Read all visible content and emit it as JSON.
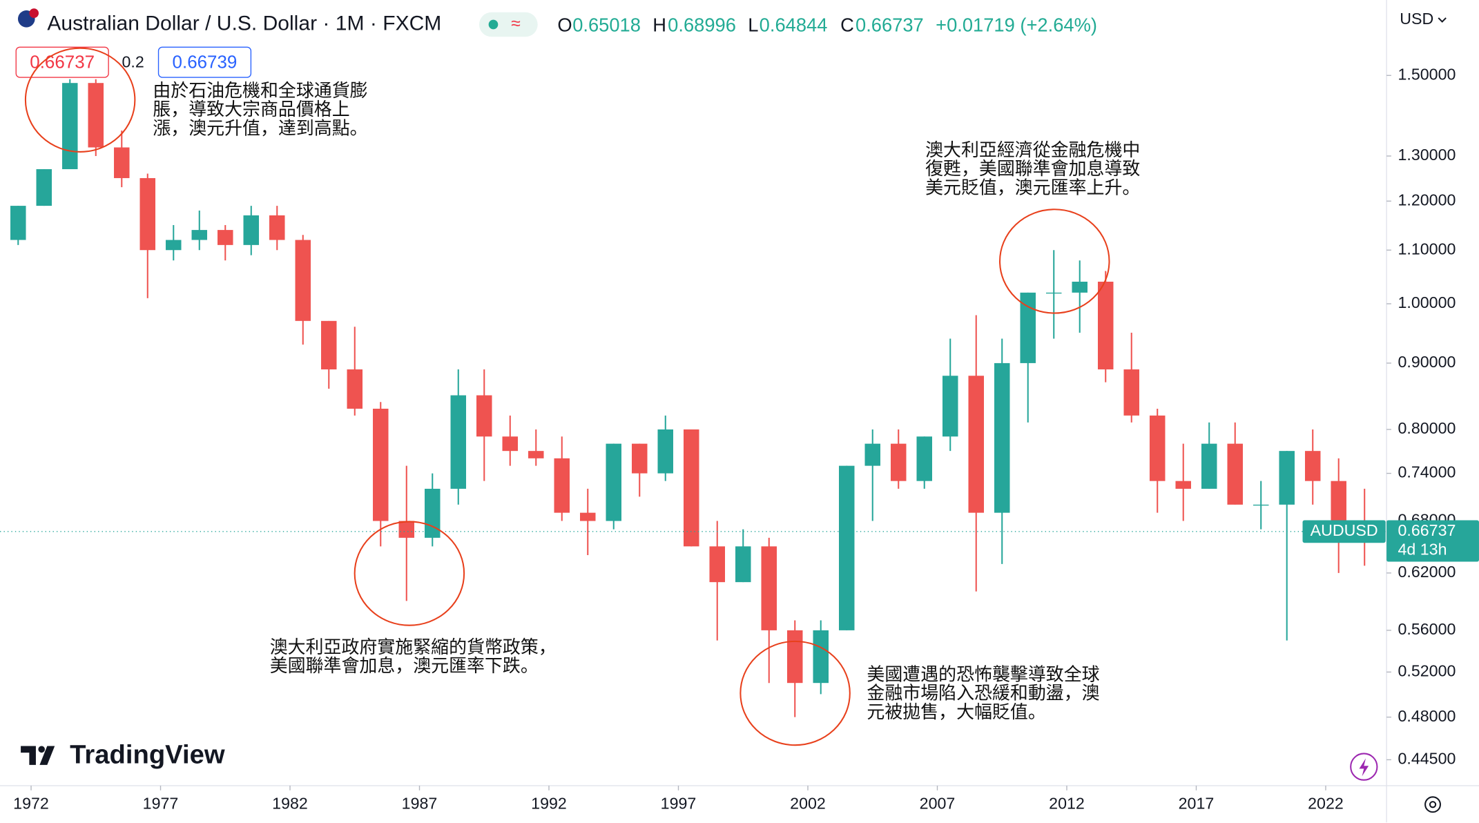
{
  "header": {
    "title": "Australian Dollar / U.S. Dollar · 1M · FXCM",
    "o_label": "O",
    "h_label": "H",
    "l_label": "L",
    "c_label": "C",
    "change": "+0.01719 (+2.64%)",
    "bid": 0.66737,
    "spread": 0.2,
    "ask": 0.66739
  },
  "chart_data": {
    "type": "candlestick",
    "log_scale": true,
    "grid": false,
    "up_color": "#26a69a",
    "down_color": "#ef5350",
    "x": [
      1971,
      1972,
      1973,
      1974,
      1975,
      1976,
      1977,
      1978,
      1979,
      1980,
      1981,
      1982,
      1983,
      1984,
      1985,
      1986,
      1987,
      1988,
      1989,
      1990,
      1991,
      1992,
      1993,
      1994,
      1995,
      1996,
      1997,
      1998,
      1999,
      2000,
      2001,
      2002,
      2003,
      2004,
      2005,
      2006,
      2007,
      2008,
      2009,
      2010,
      2011,
      2012,
      2013,
      2014,
      2015,
      2016,
      2017,
      2018,
      2019,
      2020,
      2021,
      2022,
      2023
    ],
    "open": [
      1.12,
      1.19,
      1.27,
      1.48,
      1.32,
      1.25,
      1.1,
      1.12,
      1.14,
      1.11,
      1.17,
      1.12,
      0.97,
      0.89,
      0.83,
      0.68,
      0.66,
      0.72,
      0.85,
      0.79,
      0.77,
      0.76,
      0.69,
      0.68,
      0.78,
      0.74,
      0.8,
      0.65,
      0.61,
      0.65,
      0.56,
      0.51,
      0.56,
      0.75,
      0.78,
      0.73,
      0.79,
      0.88,
      0.69,
      0.9,
      1.02,
      1.02,
      1.04,
      0.89,
      0.82,
      0.73,
      0.72,
      0.78,
      0.7,
      0.7,
      0.77,
      0.73,
      0.68
    ],
    "high": [
      1.19,
      1.27,
      1.49,
      1.49,
      1.36,
      1.26,
      1.15,
      1.18,
      1.15,
      1.19,
      1.19,
      1.13,
      0.97,
      0.96,
      0.84,
      0.75,
      0.74,
      0.89,
      0.89,
      0.82,
      0.8,
      0.79,
      0.72,
      0.78,
      0.78,
      0.82,
      0.8,
      0.68,
      0.67,
      0.66,
      0.57,
      0.57,
      0.75,
      0.8,
      0.8,
      0.79,
      0.94,
      0.98,
      0.94,
      1.02,
      1.1,
      1.08,
      1.06,
      0.95,
      0.83,
      0.78,
      0.81,
      0.81,
      0.73,
      0.77,
      0.8,
      0.76,
      0.72
    ],
    "low": [
      1.11,
      1.19,
      1.27,
      1.3,
      1.23,
      1.01,
      1.08,
      1.1,
      1.08,
      1.09,
      1.1,
      0.93,
      0.86,
      0.82,
      0.65,
      0.59,
      0.65,
      0.7,
      0.73,
      0.75,
      0.75,
      0.68,
      0.64,
      0.67,
      0.71,
      0.73,
      0.65,
      0.55,
      0.61,
      0.51,
      0.48,
      0.5,
      0.56,
      0.68,
      0.72,
      0.72,
      0.77,
      0.6,
      0.63,
      0.81,
      0.94,
      0.95,
      0.87,
      0.81,
      0.69,
      0.68,
      0.72,
      0.7,
      0.67,
      0.55,
      0.7,
      0.62,
      0.628
    ],
    "close": [
      1.19,
      1.27,
      1.48,
      1.32,
      1.25,
      1.1,
      1.12,
      1.14,
      1.11,
      1.17,
      1.12,
      0.97,
      0.89,
      0.83,
      0.68,
      0.66,
      0.72,
      0.85,
      0.79,
      0.77,
      0.76,
      0.69,
      0.68,
      0.78,
      0.74,
      0.8,
      0.65,
      0.61,
      0.65,
      0.56,
      0.51,
      0.56,
      0.75,
      0.78,
      0.73,
      0.79,
      0.88,
      0.69,
      0.9,
      1.02,
      1.02,
      1.04,
      0.89,
      0.82,
      0.73,
      0.72,
      0.78,
      0.7,
      0.7,
      0.77,
      0.73,
      0.68,
      0.667
    ],
    "ohlc": {
      "open": 0.65018,
      "high": 0.68996,
      "low": 0.64844,
      "close": 0.66737
    },
    "symbol": "AUDUSD",
    "countdown": "4d 13h",
    "currency": "USD",
    "xlim": [
      1970.8,
      2024.35
    ],
    "xticks": [
      1972,
      1977,
      1982,
      1987,
      1992,
      1997,
      2002,
      2007,
      2012,
      2017,
      2022
    ],
    "ylim": [
      0.425,
      1.715
    ],
    "yticks": [
      {
        "value": 1.5,
        "label": "1.50000"
      },
      {
        "value": 1.3,
        "label": "1.30000"
      },
      {
        "value": 1.2,
        "label": "1.20000"
      },
      {
        "value": 1.1,
        "label": "1.10000"
      },
      {
        "value": 1.0,
        "label": "1.00000"
      },
      {
        "value": 0.9,
        "label": "0.90000"
      },
      {
        "value": 0.8,
        "label": "0.80000"
      },
      {
        "value": 0.74,
        "label": "0.74000"
      },
      {
        "value": 0.68,
        "label": "0.68000"
      },
      {
        "value": 0.62,
        "label": "0.62000"
      },
      {
        "value": 0.56,
        "label": "0.56000"
      },
      {
        "value": 0.52,
        "label": "0.52000"
      },
      {
        "value": 0.48,
        "label": "0.48000"
      },
      {
        "value": 0.445,
        "label": "0.44500"
      }
    ],
    "annotations": [
      {
        "lines": [
          "由於石油危機和全球通貨膨",
          "脹，導致大宗商品價格上",
          "漲，澳元升值，達到高點。"
        ]
      },
      {
        "lines": [
          "澳大利亞政府實施緊縮的貨幣政策，",
          "美國聯準會加息，澳元匯率下跌。"
        ]
      },
      {
        "lines": [
          "美國遭遇的恐怖襲擊導致全球",
          "金融市場陷入恐緩和動盪，澳",
          "元被拋售，大幅貶值。"
        ]
      },
      {
        "lines": [
          "澳大利亞經濟從金融危機中",
          "復甦，美國聯準會加息導致",
          "美元貶值，澳元匯率上升。"
        ]
      }
    ]
  },
  "logo": "TradingView"
}
